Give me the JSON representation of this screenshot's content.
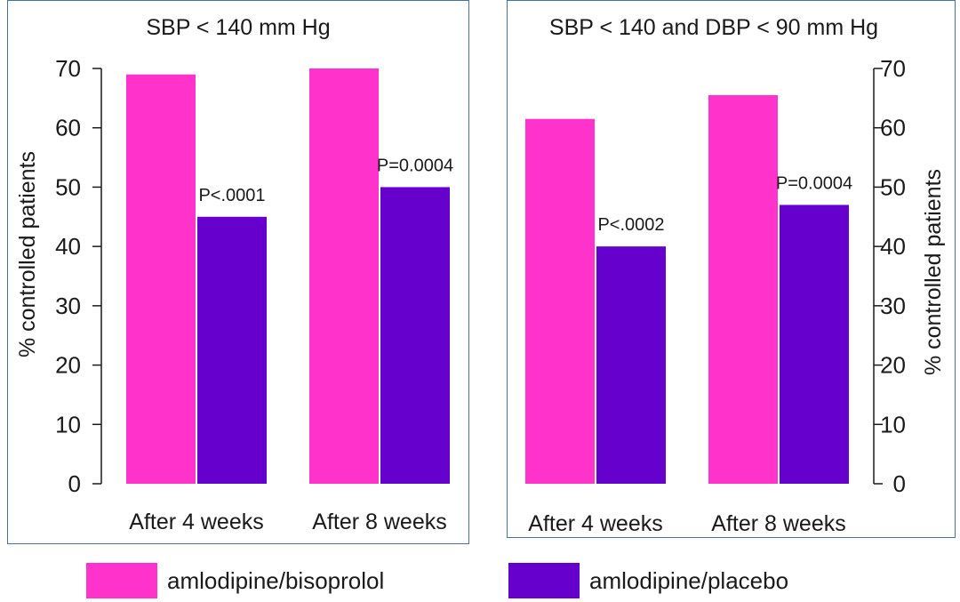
{
  "chart_data": [
    {
      "type": "bar",
      "title": "SBP < 140 mm Hg",
      "ylabel": "% controlled patients",
      "ylim": [
        0,
        70
      ],
      "yticks": [
        "0",
        "10",
        "20",
        "30",
        "40",
        "50",
        "60",
        "70"
      ],
      "axis_side": "left",
      "categories": [
        "After 4 weeks",
        "After 8 weeks"
      ],
      "series": [
        {
          "name": "amlodipine/bisoprolol",
          "values": [
            69,
            70
          ]
        },
        {
          "name": "amlodipine/placebo",
          "values": [
            45,
            50
          ]
        }
      ],
      "annotations": [
        "P<.0001",
        "P=0.0004"
      ]
    },
    {
      "type": "bar",
      "title": "SBP < 140 and DBP < 90 mm Hg",
      "ylabel": "% controlled patients",
      "ylim": [
        0,
        70
      ],
      "yticks": [
        "0",
        "10",
        "20",
        "30",
        "40",
        "50",
        "60",
        "70"
      ],
      "axis_side": "right",
      "categories": [
        "After 4 weeks",
        "After 8 weeks"
      ],
      "series": [
        {
          "name": "amlodipine/bisoprolol",
          "values": [
            61.5,
            65.5
          ]
        },
        {
          "name": "amlodipine/placebo",
          "values": [
            40,
            47
          ]
        }
      ],
      "annotations": [
        "P<.0002",
        "P=0.0004"
      ]
    }
  ],
  "legend": {
    "items": [
      {
        "label": "amlodipine/bisoprolol",
        "color": "#ff33cc"
      },
      {
        "label": "amlodipine/placebo",
        "color": "#6600cc"
      }
    ]
  },
  "colors": {
    "series1": "#ff33cc",
    "series2": "#6600cc",
    "panel_border": "#4a6fa5"
  }
}
